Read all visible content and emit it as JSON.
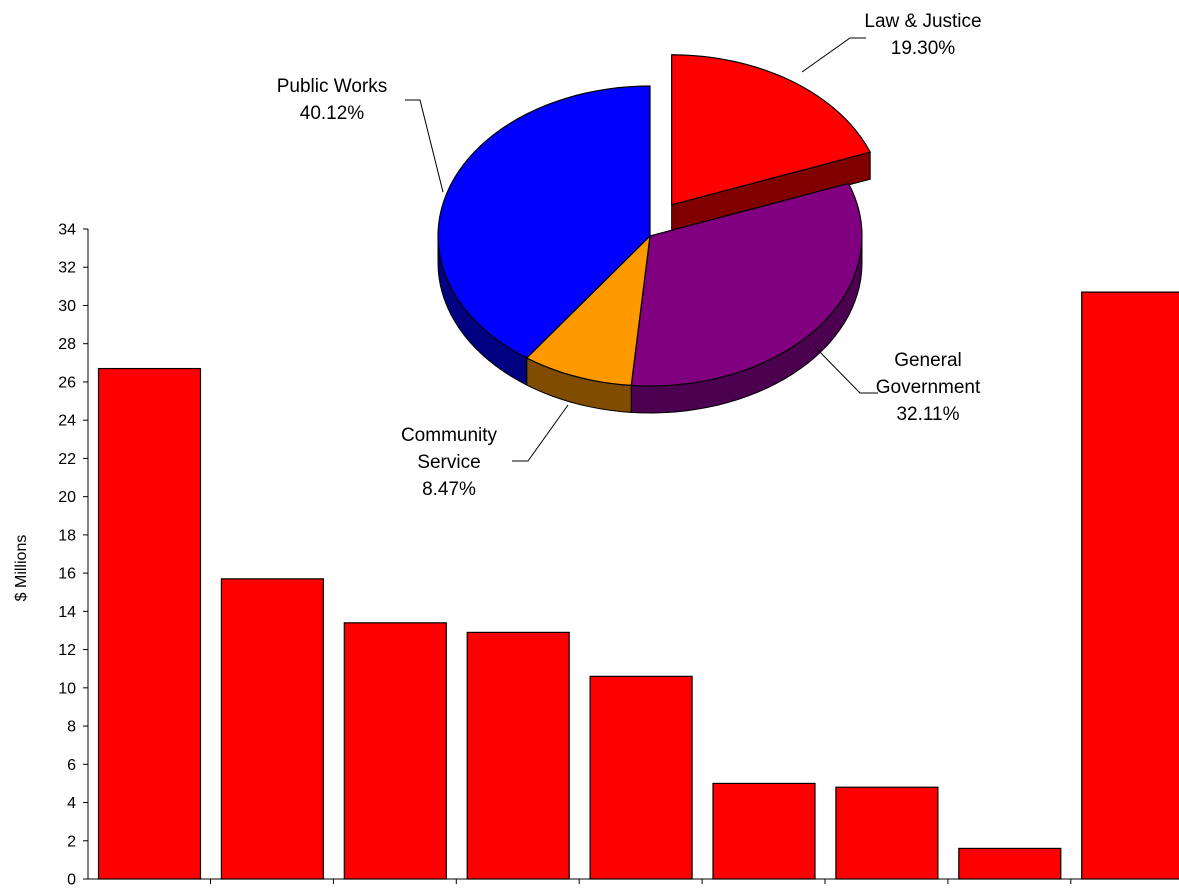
{
  "chart_data": [
    {
      "type": "bar",
      "ylabel": "$ Millions",
      "ylim": [
        0,
        34
      ],
      "ytick_step": 2,
      "bar_color": "#ff0000",
      "categories": [
        "",
        "",
        "",
        "",
        "",
        "",
        "",
        "",
        ""
      ],
      "values": [
        26.7,
        15.7,
        13.4,
        12.9,
        10.6,
        5.0,
        4.8,
        1.6,
        30.7
      ],
      "grid": false
    },
    {
      "type": "pie",
      "style": "3d-exploded",
      "slices": [
        {
          "label": "Law & Justice",
          "value_text": "19.30%",
          "value": 19.3,
          "color": "#ff0000",
          "dark_color": "#800000",
          "exploded": true
        },
        {
          "label": "General\nGovernment",
          "value_text": "32.11%",
          "value": 32.11,
          "color": "#800080",
          "dark_color": "#4b0050",
          "exploded": false
        },
        {
          "label": "Community\nService",
          "value_text": "8.47%",
          "value": 8.47,
          "color": "#ff9900",
          "dark_color": "#7f4c00",
          "exploded": false
        },
        {
          "label": "Public Works",
          "value_text": "40.12%",
          "value": 40.12,
          "color": "#0000ff",
          "dark_color": "#000080",
          "exploded": false
        }
      ]
    }
  ]
}
